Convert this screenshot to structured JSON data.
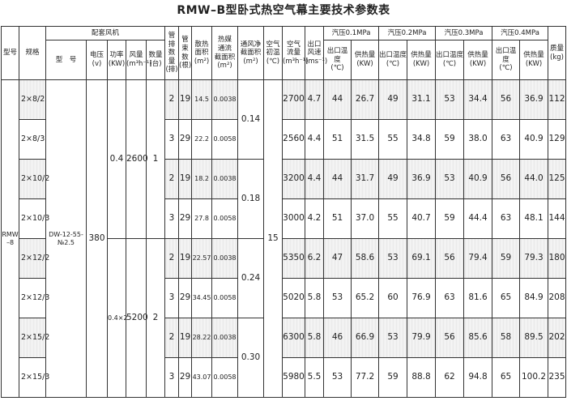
{
  "title": "RMW–B型卧式热空气幕主要技术参数表",
  "header": {
    "type": "型号",
    "spec": "规格",
    "fan_group": "配套风机",
    "fan_model": "型　号",
    "voltage": "电压\n(v)",
    "power": "功率\n(KW)",
    "airflow": "风量\n(m³h⁻¹)",
    "qty": "数量\n(台)",
    "tube_rows": "管\n排\n数\n量\n(排)",
    "tube_bundles": "管\n束\n数\n(根)",
    "heat_area": "散热\n面积\n(m²)",
    "medium_area": "热媒\n通流\n截面积\n(m²)",
    "vent_area": "通风净\n截面积\n(m²)",
    "air_temp": "空气\n初温\n(℃)",
    "air_flow": "空气\n流量\n(m³h⁻¹)",
    "outlet_speed": "出口\n风速\n(ms⁻¹)",
    "pressures": [
      "汽压0.1MPa",
      "汽压0.2MPa",
      "汽压0.3MPa",
      "汽压0.4MPa"
    ],
    "outlet_temp": "出口温度\n(℃)",
    "heat_supply": "供热量\n(KW)",
    "mass": "质量\n(kg)"
  },
  "shared": {
    "type": "RMW\n–8",
    "fan_model": "DW-12-55-№2.5",
    "voltage": "380",
    "air_temp": "15",
    "fan_groups": [
      {
        "power": "0.4",
        "airflow": "2600",
        "qty": "1"
      },
      {
        "power": "0.4×2",
        "airflow": "5200",
        "qty": "2"
      }
    ],
    "vent_areas": [
      "0.14",
      "0.18",
      "0.24",
      "0.30"
    ]
  },
  "rows": [
    {
      "spec": "2×8/2",
      "tube_rows": "2",
      "tube_bundles": "19",
      "heat_area": "14.5",
      "medium_area": "0.0038",
      "air_flow": "2700",
      "speed": "4.7",
      "p": [
        "44",
        "26.7",
        "49",
        "31.1",
        "53",
        "34.4",
        "56",
        "36.9"
      ],
      "mass": "112"
    },
    {
      "spec": "2×8/3",
      "tube_rows": "3",
      "tube_bundles": "29",
      "heat_area": "22.2",
      "medium_area": "0.0058",
      "air_flow": "2560",
      "speed": "4.4",
      "p": [
        "51",
        "31.5",
        "55",
        "34.8",
        "59",
        "38.0",
        "63",
        "40.9"
      ],
      "mass": "129"
    },
    {
      "spec": "2×10/2",
      "tube_rows": "2",
      "tube_bundles": "19",
      "heat_area": "18.2",
      "medium_area": "0.0038",
      "air_flow": "3200",
      "speed": "4.4",
      "p": [
        "44",
        "31.7",
        "49",
        "36.9",
        "53",
        "40.9",
        "56",
        "44.0"
      ],
      "mass": "125"
    },
    {
      "spec": "2×10/3",
      "tube_rows": "3",
      "tube_bundles": "29",
      "heat_area": "27.8",
      "medium_area": "0.0058",
      "air_flow": "3000",
      "speed": "4.2",
      "p": [
        "51",
        "37.0",
        "55",
        "40.7",
        "59",
        "44.4",
        "63",
        "48.1"
      ],
      "mass": "144"
    },
    {
      "spec": "2×12/2",
      "tube_rows": "2",
      "tube_bundles": "19",
      "heat_area": "22.57",
      "medium_area": "0.0038",
      "air_flow": "5350",
      "speed": "6.2",
      "p": [
        "47",
        "58.6",
        "53",
        "69.1",
        "56",
        "79.4",
        "59",
        "79.3"
      ],
      "mass": "180"
    },
    {
      "spec": "2×12/3",
      "tube_rows": "3",
      "tube_bundles": "29",
      "heat_area": "34.45",
      "medium_area": "0.0058",
      "air_flow": "5020",
      "speed": "5.8",
      "p": [
        "53",
        "65.2",
        "60",
        "76.9",
        "63",
        "81.6",
        "65",
        "84.9"
      ],
      "mass": "208"
    },
    {
      "spec": "2×15/2",
      "tube_rows": "2",
      "tube_bundles": "19",
      "heat_area": "28.22",
      "medium_area": "0.0038",
      "air_flow": "6300",
      "speed": "5.8",
      "p": [
        "46",
        "66.9",
        "53",
        "79.9",
        "56",
        "85.6",
        "58",
        "89.5"
      ],
      "mass": "202"
    },
    {
      "spec": "2×15/3",
      "tube_rows": "3",
      "tube_bundles": "29",
      "heat_area": "43.07",
      "medium_area": "0.0058",
      "air_flow": "5980",
      "speed": "5.5",
      "p": [
        "53",
        "77.2",
        "59",
        "88.8",
        "62",
        "94.8",
        "65",
        "100.2"
      ],
      "mass": "235"
    }
  ]
}
